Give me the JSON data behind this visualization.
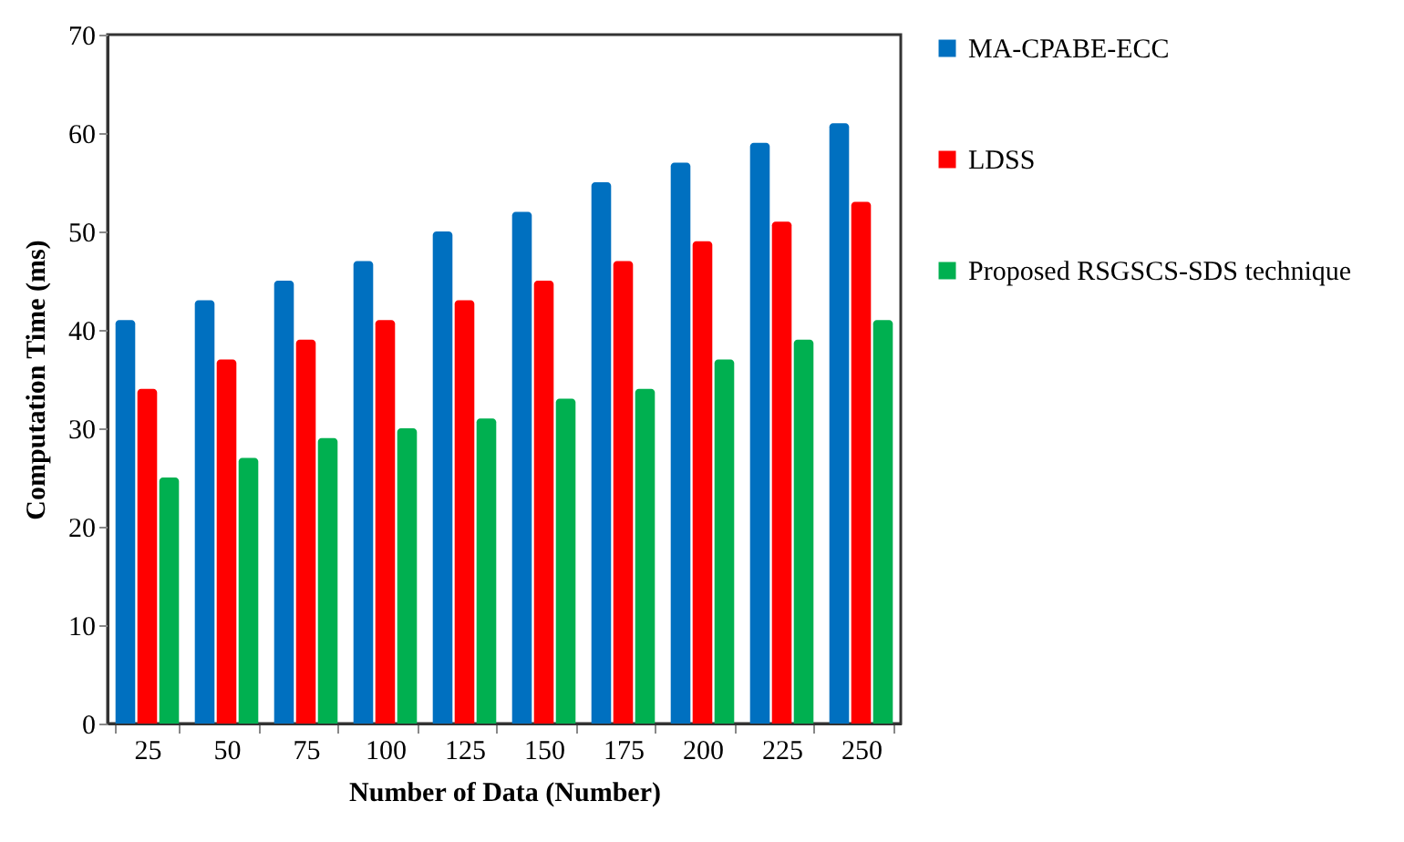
{
  "chart_data": {
    "type": "bar",
    "xlabel": "Number  of Data (Number)",
    "ylabel": "Computation  Time  (ms)",
    "categories": [
      "25",
      "50",
      "75",
      "100",
      "125",
      "150",
      "175",
      "200",
      "225",
      "250"
    ],
    "series": [
      {
        "name": "MA-CPABE-ECC",
        "color": "#0070c0",
        "values": [
          41,
          43,
          45,
          47,
          50,
          52,
          55,
          57,
          59,
          61
        ]
      },
      {
        "name": "LDSS",
        "color": "#ff0000",
        "values": [
          34,
          37,
          39,
          41,
          43,
          45,
          47,
          49,
          51,
          53
        ]
      },
      {
        "name": "Proposed RSGSCS-SDS technique",
        "color": "#00b050",
        "values": [
          25,
          27,
          29,
          30,
          31,
          33,
          34,
          37,
          39,
          41
        ]
      }
    ],
    "ylim": [
      0,
      70
    ],
    "yticks": [
      0,
      10,
      20,
      30,
      40,
      50,
      60,
      70
    ],
    "grid": false,
    "legend": "right"
  }
}
